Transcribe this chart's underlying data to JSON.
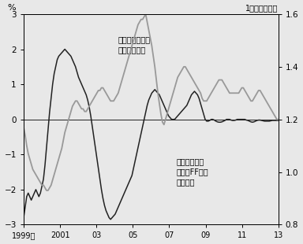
{
  "left_axis_label": "%",
  "right_axis_label": "1ユーロ＝ドル",
  "label_euro_rate": "ユーロの対ドル\n相場（右軸）",
  "label_interest": "ユーロ銀行間\n金利－FF金利\n（左軸）",
  "left_ylim": [
    -3,
    3
  ],
  "right_ylim": [
    0.8,
    1.6
  ],
  "left_yticks": [
    -3,
    -2,
    -1,
    0,
    1,
    2,
    3
  ],
  "right_yticks": [
    0.8,
    1.0,
    1.2,
    1.4,
    1.6
  ],
  "xtick_labels": [
    "1999年",
    "2001",
    "03",
    "05",
    "07",
    "09",
    "11",
    "13"
  ],
  "xtick_positions": [
    0,
    24,
    48,
    72,
    96,
    120,
    144,
    168
  ],
  "background_color": "#e8e8e8",
  "line1_color": "#222222",
  "line2_color": "#999999",
  "interest_diff": [
    -2.8,
    -2.5,
    -2.2,
    -2.1,
    -2.2,
    -2.3,
    -2.2,
    -2.1,
    -2.0,
    -2.1,
    -2.2,
    -2.1,
    -1.9,
    -1.7,
    -1.3,
    -0.8,
    -0.3,
    0.2,
    0.6,
    1.0,
    1.3,
    1.5,
    1.7,
    1.8,
    1.85,
    1.9,
    1.95,
    2.0,
    1.95,
    1.9,
    1.85,
    1.8,
    1.7,
    1.6,
    1.5,
    1.35,
    1.2,
    1.1,
    1.0,
    0.9,
    0.8,
    0.7,
    0.55,
    0.35,
    0.1,
    -0.2,
    -0.5,
    -0.8,
    -1.1,
    -1.4,
    -1.7,
    -2.0,
    -2.25,
    -2.45,
    -2.6,
    -2.7,
    -2.8,
    -2.85,
    -2.8,
    -2.75,
    -2.7,
    -2.6,
    -2.5,
    -2.4,
    -2.3,
    -2.2,
    -2.1,
    -2.0,
    -1.9,
    -1.8,
    -1.7,
    -1.6,
    -1.4,
    -1.2,
    -1.0,
    -0.8,
    -0.6,
    -0.4,
    -0.2,
    0.0,
    0.2,
    0.4,
    0.55,
    0.65,
    0.75,
    0.8,
    0.85,
    0.8,
    0.75,
    0.7,
    0.6,
    0.5,
    0.4,
    0.3,
    0.2,
    0.1,
    0.05,
    0.0,
    0.0,
    0.0,
    0.05,
    0.1,
    0.15,
    0.2,
    0.25,
    0.3,
    0.35,
    0.4,
    0.5,
    0.6,
    0.7,
    0.75,
    0.8,
    0.75,
    0.7,
    0.6,
    0.45,
    0.3,
    0.15,
    0.0,
    -0.05,
    -0.05,
    -0.03,
    0.0,
    0.0,
    -0.02,
    -0.05,
    -0.07,
    -0.08,
    -0.08,
    -0.07,
    -0.05,
    -0.03,
    0.0,
    0.0,
    0.0,
    -0.02,
    -0.03,
    -0.03,
    -0.02,
    0.0,
    0.0,
    0.0,
    0.0,
    0.0,
    0.0,
    -0.02,
    -0.03,
    -0.05,
    -0.07,
    -0.08,
    -0.07,
    -0.05,
    -0.03,
    -0.02,
    -0.02,
    -0.03,
    -0.04,
    -0.05,
    -0.05,
    -0.05,
    -0.05,
    -0.04,
    -0.03,
    -0.03,
    -0.03,
    -0.03,
    -0.03
  ],
  "eurusd": [
    1.17,
    1.14,
    1.1,
    1.07,
    1.05,
    1.03,
    1.01,
    1.0,
    0.99,
    0.98,
    0.97,
    0.96,
    0.95,
    0.95,
    0.94,
    0.93,
    0.93,
    0.94,
    0.95,
    0.97,
    0.99,
    1.01,
    1.03,
    1.05,
    1.07,
    1.09,
    1.12,
    1.15,
    1.17,
    1.19,
    1.21,
    1.23,
    1.25,
    1.26,
    1.27,
    1.27,
    1.26,
    1.25,
    1.24,
    1.24,
    1.23,
    1.23,
    1.24,
    1.25,
    1.26,
    1.27,
    1.28,
    1.29,
    1.3,
    1.31,
    1.31,
    1.32,
    1.32,
    1.31,
    1.3,
    1.29,
    1.28,
    1.27,
    1.27,
    1.27,
    1.28,
    1.29,
    1.3,
    1.32,
    1.34,
    1.36,
    1.38,
    1.4,
    1.42,
    1.44,
    1.46,
    1.48,
    1.5,
    1.52,
    1.54,
    1.56,
    1.57,
    1.58,
    1.58,
    1.59,
    1.6,
    1.57,
    1.54,
    1.51,
    1.48,
    1.44,
    1.4,
    1.35,
    1.3,
    1.26,
    1.22,
    1.19,
    1.18,
    1.2,
    1.22,
    1.24,
    1.26,
    1.28,
    1.3,
    1.32,
    1.34,
    1.36,
    1.37,
    1.38,
    1.39,
    1.4,
    1.4,
    1.39,
    1.38,
    1.37,
    1.36,
    1.35,
    1.34,
    1.33,
    1.32,
    1.31,
    1.3,
    1.28,
    1.27,
    1.27,
    1.27,
    1.28,
    1.29,
    1.3,
    1.31,
    1.32,
    1.33,
    1.34,
    1.35,
    1.35,
    1.35,
    1.34,
    1.33,
    1.32,
    1.31,
    1.3,
    1.3,
    1.3,
    1.3,
    1.3,
    1.3,
    1.3,
    1.31,
    1.32,
    1.32,
    1.31,
    1.3,
    1.29,
    1.28,
    1.27,
    1.27,
    1.28,
    1.29,
    1.3,
    1.31,
    1.31,
    1.3,
    1.29,
    1.28,
    1.27,
    1.26,
    1.25,
    1.24,
    1.23,
    1.22,
    1.21,
    1.2,
    1.2
  ]
}
